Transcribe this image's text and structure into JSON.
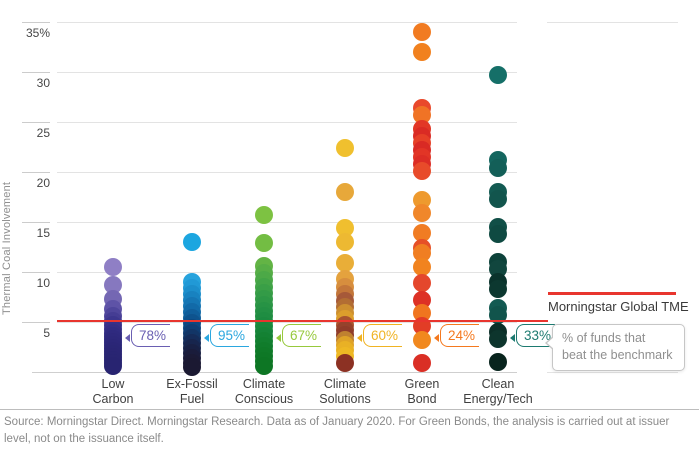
{
  "chart_data": {
    "type": "scatter",
    "title": "",
    "ylabel": "Thermal Coal Involvement",
    "ylim": [
      0,
      37
    ],
    "grid": true,
    "yticks": [
      {
        "label": "35%",
        "value": 35
      },
      {
        "label": "30",
        "value": 30
      },
      {
        "label": "25",
        "value": 25
      },
      {
        "label": "20",
        "value": 20
      },
      {
        "label": "15",
        "value": 15
      },
      {
        "label": "10",
        "value": 10
      },
      {
        "label": "5",
        "value": 5
      }
    ],
    "benchmark": {
      "name": "Morningstar Global TME",
      "value": 5.1,
      "color": "#e8352e"
    },
    "series": [
      {
        "name": "Low Carbon",
        "label_lines": [
          "Low",
          "Carbon"
        ],
        "beat_benchmark_pct": "78%",
        "callout_color": "#6a5fb2",
        "points": [
          [
            10.5,
            "#8f7fc5"
          ],
          [
            8.7,
            "#8678bf"
          ],
          [
            7.3,
            "#7467b3"
          ],
          [
            6.3,
            "#5e53a7"
          ],
          [
            5.6,
            "#4f469c"
          ],
          [
            5.1,
            "#453d94"
          ],
          [
            4.7,
            "#3d368e"
          ],
          [
            4.3,
            "#383189"
          ],
          [
            3.9,
            "#342e85"
          ],
          [
            3.6,
            "#312c82"
          ],
          [
            3.3,
            "#2f2a7f"
          ],
          [
            3.0,
            "#2e297d"
          ],
          [
            2.7,
            "#2d287b"
          ],
          [
            2.4,
            "#2c2779"
          ],
          [
            2.1,
            "#2b2677"
          ],
          [
            1.8,
            "#2a2675"
          ],
          [
            1.5,
            "#2a2574"
          ],
          [
            1.2,
            "#292573"
          ],
          [
            0.9,
            "#292572"
          ],
          [
            0.6,
            "#282471"
          ]
        ]
      },
      {
        "name": "Ex-Fossil Fuel",
        "label_lines": [
          "Ex-Fossil",
          "Fuel"
        ],
        "beat_benchmark_pct": "95%",
        "callout_color": "#2ba7df",
        "points": [
          [
            13.0,
            "#1ca6e0"
          ],
          [
            9.0,
            "#27a3dd"
          ],
          [
            8.4,
            "#2199d6"
          ],
          [
            7.8,
            "#1c8ecb"
          ],
          [
            7.2,
            "#1882c0"
          ],
          [
            6.6,
            "#1576b4"
          ],
          [
            6.0,
            "#126aa8"
          ],
          [
            5.4,
            "#105e9b"
          ],
          [
            4.9,
            "#0e538e"
          ],
          [
            4.4,
            "#0d4881"
          ],
          [
            3.9,
            "#0f3e74"
          ],
          [
            3.4,
            "#123566"
          ],
          [
            2.9,
            "#152c59"
          ],
          [
            2.4,
            "#17254d"
          ],
          [
            1.9,
            "#182043"
          ],
          [
            1.4,
            "#1a1c3b"
          ],
          [
            0.9,
            "#1b1a35"
          ],
          [
            0.5,
            "#1b1932"
          ]
        ]
      },
      {
        "name": "Climate Conscious",
        "label_lines": [
          "Climate",
          "Conscious"
        ],
        "beat_benchmark_pct": "67%",
        "callout_color": "#97c93d",
        "points": [
          [
            15.7,
            "#7dc242"
          ],
          [
            12.9,
            "#73bd43"
          ],
          [
            10.6,
            "#63b445"
          ],
          [
            9.9,
            "#57ae46"
          ],
          [
            9.2,
            "#4ca947"
          ],
          [
            8.5,
            "#42a447"
          ],
          [
            7.9,
            "#3a9f47"
          ],
          [
            7.3,
            "#339b47"
          ],
          [
            6.7,
            "#2d9746"
          ],
          [
            6.1,
            "#279345"
          ],
          [
            5.6,
            "#239044"
          ],
          [
            5.1,
            "#1f8d42"
          ],
          [
            4.6,
            "#1c8a40"
          ],
          [
            4.1,
            "#19873c"
          ],
          [
            3.6,
            "#168438"
          ],
          [
            3.1,
            "#148133"
          ],
          [
            2.6,
            "#127f2f"
          ],
          [
            2.1,
            "#107c2b"
          ],
          [
            1.6,
            "#0f7a28"
          ],
          [
            1.1,
            "#0e7826"
          ],
          [
            0.6,
            "#0d7624"
          ]
        ]
      },
      {
        "name": "Climate Solutions",
        "label_lines": [
          "Climate",
          "Solutions"
        ],
        "beat_benchmark_pct": "60%",
        "callout_color": "#f0b323",
        "points": [
          [
            22.4,
            "#f0c02e"
          ],
          [
            18.0,
            "#e7a83a"
          ],
          [
            14.4,
            "#f0bf2f"
          ],
          [
            13.0,
            "#edb932"
          ],
          [
            10.9,
            "#e9ae38"
          ],
          [
            9.3,
            "#e4a23e"
          ],
          [
            8.5,
            "#d78e3e"
          ],
          [
            7.8,
            "#c3763a"
          ],
          [
            7.1,
            "#a65939"
          ],
          [
            6.5,
            "#b26d33"
          ],
          [
            5.9,
            "#cd8f30"
          ],
          [
            5.3,
            "#dc9e2c"
          ],
          [
            4.7,
            "#a9542f"
          ],
          [
            4.2,
            "#95422c"
          ],
          [
            3.7,
            "#8f3c2a"
          ],
          [
            3.2,
            "#c08130"
          ],
          [
            2.7,
            "#dfa328"
          ],
          [
            2.2,
            "#e9b125"
          ],
          [
            1.6,
            "#eeb824"
          ],
          [
            0.9,
            "#8c3123"
          ]
        ]
      },
      {
        "name": "Green Bond",
        "label_lines": [
          "Green",
          "Bond"
        ],
        "beat_benchmark_pct": "24%",
        "callout_color": "#f4791f",
        "points": [
          [
            34.0,
            "#f17b21"
          ],
          [
            32.0,
            "#f1811f"
          ],
          [
            26.4,
            "#e9492b"
          ],
          [
            25.7,
            "#f07325"
          ],
          [
            24.3,
            "#e23726"
          ],
          [
            23.6,
            "#da2b24"
          ],
          [
            22.9,
            "#e64027"
          ],
          [
            22.2,
            "#d92a24"
          ],
          [
            21.5,
            "#e23526"
          ],
          [
            20.8,
            "#dc2d25"
          ],
          [
            20.1,
            "#e84b2a"
          ],
          [
            17.2,
            "#ee9a2e"
          ],
          [
            15.9,
            "#f0872a"
          ],
          [
            13.9,
            "#f07c23"
          ],
          [
            12.4,
            "#e65027"
          ],
          [
            11.9,
            "#f07e22"
          ],
          [
            10.5,
            "#f1831f"
          ],
          [
            8.9,
            "#e4472c"
          ],
          [
            7.2,
            "#dd3125"
          ],
          [
            5.9,
            "#f0751f"
          ],
          [
            4.6,
            "#e23d26"
          ],
          [
            3.2,
            "#f1881e"
          ],
          [
            0.9,
            "#da2f25"
          ]
        ]
      },
      {
        "name": "Clean Energy/Tech",
        "label_lines": [
          "Clean",
          "Energy/Tech"
        ],
        "beat_benchmark_pct": "33%",
        "callout_color": "#1d7a70",
        "points": [
          [
            29.7,
            "#156f68"
          ],
          [
            21.2,
            "#14665f"
          ],
          [
            20.4,
            "#135f58"
          ],
          [
            18.0,
            "#135a52"
          ],
          [
            17.3,
            "#12554d"
          ],
          [
            14.5,
            "#114f47"
          ],
          [
            13.8,
            "#0f4a42"
          ],
          [
            11.0,
            "#0d423a"
          ],
          [
            10.3,
            "#11463e"
          ],
          [
            9.0,
            "#0a332c"
          ],
          [
            8.3,
            "#0c3830"
          ],
          [
            6.4,
            "#135a52"
          ],
          [
            5.7,
            "#11544c"
          ],
          [
            4.0,
            "#0b2f28"
          ],
          [
            3.3,
            "#0d352d"
          ],
          [
            1.0,
            "#08241d"
          ]
        ]
      }
    ],
    "legend_position": "right"
  },
  "legend": {
    "benchmark_label": "Morningstar Global TME",
    "tooltip_line1": "% of funds that",
    "tooltip_line2": "beat the benchmark"
  },
  "source": {
    "text": "Source: Morningstar Direct. Morningstar Research. Data as of January 2020. For Green Bonds, the analysis is carried out at issuer level, not on the issuance itself."
  }
}
